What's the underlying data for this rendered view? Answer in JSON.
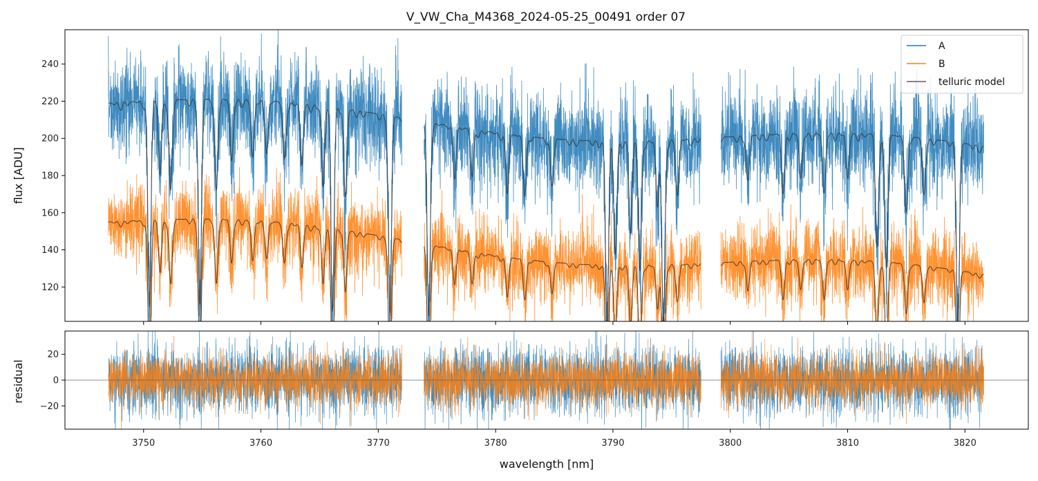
{
  "chart_data": {
    "type": "line",
    "title": "V_VW_Cha_M4368_2024-05-25_00491  order 07",
    "xlabel": "wavelength [nm]",
    "xlim": [
      3743.3,
      3825.4
    ],
    "x_ticks": [
      3750,
      3760,
      3770,
      3780,
      3790,
      3800,
      3810,
      3820
    ],
    "x_tick_labels": [
      "3750",
      "3760",
      "3770",
      "3780",
      "3790",
      "3800",
      "3810",
      "3820"
    ],
    "segments": [
      [
        3747.0,
        3772.0
      ],
      [
        3773.9,
        3797.5
      ],
      [
        3799.2,
        3821.6
      ]
    ],
    "colors": {
      "A": "#1f77b4",
      "B": "#ff7f0e",
      "telluric": "#333333",
      "zero_line": "#666666",
      "frame": "#000000"
    },
    "panels": [
      {
        "name": "flux",
        "ylabel": "flux [ADU]",
        "ylim": [
          101.5,
          258.5
        ],
        "y_ticks": [
          120,
          140,
          160,
          180,
          200,
          220,
          240
        ],
        "y_tick_labels": [
          "120",
          "140",
          "160",
          "180",
          "200",
          "220",
          "240"
        ],
        "legend": {
          "position": "top-right",
          "entries": [
            "A",
            "B",
            "telluric model"
          ]
        },
        "series": [
          {
            "name": "A",
            "kind": "observed",
            "continuum_start": 219,
            "continuum_end": 193,
            "noise_sigma": 13
          },
          {
            "name": "B",
            "kind": "observed",
            "continuum_start": 155,
            "continuum_end": 124,
            "noise_sigma": 10
          },
          {
            "name": "telluric model",
            "kind": "model",
            "applies_to": [
              "A",
              "B"
            ]
          }
        ],
        "telluric_lines": [
          {
            "center": 3750.5,
            "depth": 0.5
          },
          {
            "center": 3751.4,
            "depth": 0.18
          },
          {
            "center": 3752.3,
            "depth": 0.22
          },
          {
            "center": 3754.8,
            "depth": 0.5
          },
          {
            "center": 3756.2,
            "depth": 0.22
          },
          {
            "center": 3757.5,
            "depth": 0.15
          },
          {
            "center": 3759.3,
            "depth": 0.14
          },
          {
            "center": 3760.5,
            "depth": 0.12
          },
          {
            "center": 3762.0,
            "depth": 0.14
          },
          {
            "center": 3763.5,
            "depth": 0.15
          },
          {
            "center": 3765.3,
            "depth": 0.2
          },
          {
            "center": 3766.1,
            "depth": 0.5
          },
          {
            "center": 3767.2,
            "depth": 0.22
          },
          {
            "center": 3771.0,
            "depth": 0.5
          },
          {
            "center": 3774.3,
            "depth": 0.5
          },
          {
            "center": 3776.5,
            "depth": 0.12
          },
          {
            "center": 3778.0,
            "depth": 0.12
          },
          {
            "center": 3781.0,
            "depth": 0.15
          },
          {
            "center": 3782.5,
            "depth": 0.15
          },
          {
            "center": 3784.8,
            "depth": 0.12
          },
          {
            "center": 3789.5,
            "depth": 0.5
          },
          {
            "center": 3790.2,
            "depth": 0.3
          },
          {
            "center": 3791.5,
            "depth": 0.25
          },
          {
            "center": 3792.3,
            "depth": 0.35
          },
          {
            "center": 3793.8,
            "depth": 0.18
          },
          {
            "center": 3794.3,
            "depth": 0.5
          },
          {
            "center": 3795.5,
            "depth": 0.15
          },
          {
            "center": 3801.5,
            "depth": 0.12
          },
          {
            "center": 3804.5,
            "depth": 0.15
          },
          {
            "center": 3806.0,
            "depth": 0.12
          },
          {
            "center": 3808.0,
            "depth": 0.16
          },
          {
            "center": 3810.0,
            "depth": 0.12
          },
          {
            "center": 3812.5,
            "depth": 0.3
          },
          {
            "center": 3813.3,
            "depth": 0.35
          },
          {
            "center": 3815.0,
            "depth": 0.2
          },
          {
            "center": 3816.5,
            "depth": 0.15
          },
          {
            "center": 3819.4,
            "depth": 0.5
          }
        ]
      },
      {
        "name": "residual",
        "ylabel": "residual",
        "ylim": [
          -38,
          38
        ],
        "y_ticks": [
          -20,
          0,
          20
        ],
        "y_tick_labels": [
          "−20",
          "0",
          "20"
        ],
        "zero_line": 0,
        "series": [
          {
            "name": "A",
            "noise_sigma": 13
          },
          {
            "name": "B",
            "noise_sigma": 10
          }
        ]
      }
    ]
  }
}
